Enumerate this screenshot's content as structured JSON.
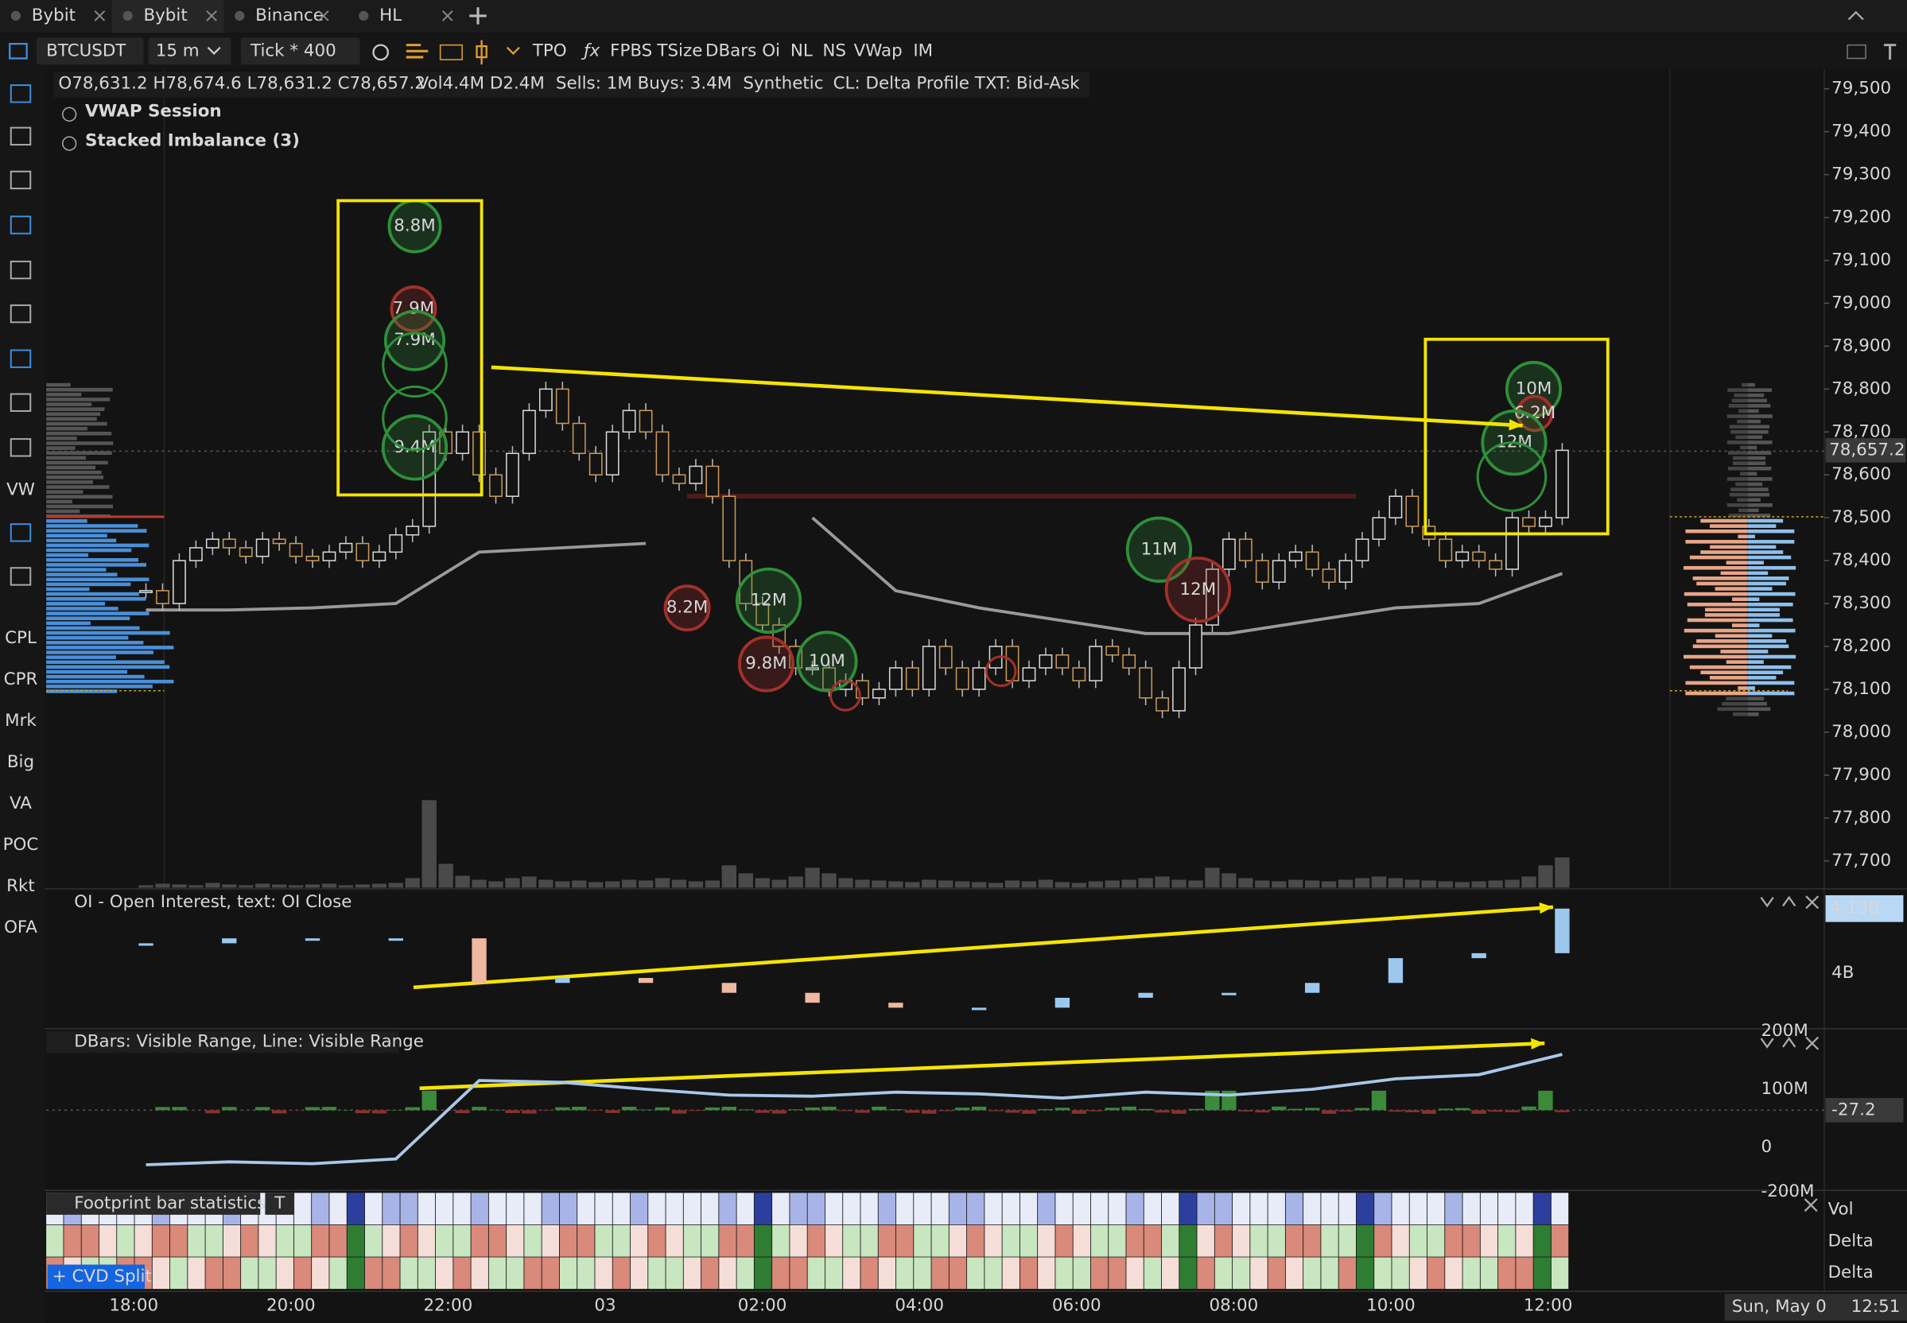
{
  "tabs": [
    "Bybit",
    "Bybit",
    "Binance",
    "HL"
  ],
  "toolbar": {
    "symbol": "BTCUSDT",
    "interval": "15 m",
    "aggregation": "Tick * 400",
    "buttons": [
      "TPO",
      "FPBS",
      "TSize",
      "DBars",
      "Oi",
      "NL",
      "NS",
      "VWap",
      "IM"
    ]
  },
  "left_tools": [
    "VW",
    "CPL",
    "CPR",
    "Mrk",
    "Big",
    "VA",
    "POC",
    "Rkt",
    "OFA"
  ],
  "legend": {
    "ohlc": "O78,631.2 H78,674.6 L78,631.2 C78,657.2",
    "vol": "Vol4.4M D2.4M",
    "flow": "Sells: 1M Buys: 3.4M",
    "mode": "Synthetic",
    "settings": "CL: Delta Profile TXT: Bid-Ask",
    "indicators": [
      "VWAP Session",
      "Stacked Imbalance (3)"
    ]
  },
  "price_chart": {
    "type": "candlestick",
    "ylim": [
      77650,
      79550
    ],
    "yticks": [
      {
        "value": 79500,
        "label": "79,500"
      },
      {
        "value": 79400,
        "label": "79,400"
      },
      {
        "value": 79300,
        "label": "79,300"
      },
      {
        "value": 79200,
        "label": "79,200"
      },
      {
        "value": 79100,
        "label": "79,100"
      },
      {
        "value": 79000,
        "label": "79,000"
      },
      {
        "value": 78900,
        "label": "78,900"
      },
      {
        "value": 78800,
        "label": "78,800"
      },
      {
        "value": 78700,
        "label": "78,700"
      },
      {
        "value": 78600,
        "label": "78,600"
      },
      {
        "value": 78500,
        "label": "78,500"
      },
      {
        "value": 78400,
        "label": "78,400"
      },
      {
        "value": 78300,
        "label": "78,300"
      },
      {
        "value": 78200,
        "label": "78,200"
      },
      {
        "value": 78100,
        "label": "78,100"
      },
      {
        "value": 78000,
        "label": "78,000"
      },
      {
        "value": 77900,
        "label": "77,900"
      },
      {
        "value": 77800,
        "label": "77,800"
      },
      {
        "value": 77700,
        "label": "77,700"
      }
    ],
    "last_price": {
      "value": 78657.2,
      "label": "78,657.2"
    },
    "closes": [
      78330,
      78300,
      78400,
      78430,
      78450,
      78430,
      78410,
      78450,
      78440,
      78410,
      78400,
      78420,
      78440,
      78400,
      78420,
      78460,
      78480,
      78700,
      78650,
      78700,
      78600,
      78550,
      78650,
      78750,
      78800,
      78720,
      78650,
      78600,
      78700,
      78750,
      78700,
      78600,
      78580,
      78620,
      78550,
      78400,
      78300,
      78250,
      78200,
      78150,
      78150,
      78100,
      78120,
      78080,
      78100,
      78150,
      78100,
      78200,
      78150,
      78100,
      78150,
      78200,
      78120,
      78150,
      78180,
      78150,
      78120,
      78200,
      78180,
      78150,
      78080,
      78050,
      78150,
      78250,
      78380,
      78450,
      78400,
      78350,
      78400,
      78420,
      78380,
      78350,
      78400,
      78450,
      78500,
      78550,
      78480,
      78450,
      78400,
      78420,
      78400,
      78380,
      78500,
      78480,
      78500,
      78657.2
    ],
    "volume": [
      3,
      5,
      4,
      3,
      6,
      4,
      3,
      5,
      4,
      3,
      4,
      5,
      3,
      4,
      5,
      6,
      12,
      110,
      30,
      15,
      10,
      8,
      12,
      14,
      10,
      8,
      9,
      7,
      8,
      10,
      9,
      12,
      10,
      8,
      9,
      28,
      18,
      12,
      10,
      14,
      25,
      18,
      12,
      10,
      9,
      8,
      7,
      10,
      9,
      8,
      7,
      6,
      9,
      8,
      10,
      7,
      6,
      8,
      9,
      10,
      12,
      14,
      10,
      9,
      25,
      18,
      12,
      9,
      8,
      10,
      9,
      8,
      10,
      12,
      14,
      12,
      10,
      9,
      8,
      7,
      8,
      9,
      10,
      14,
      28,
      38
    ],
    "vwap": [
      78285,
      78285,
      78290,
      78300,
      78420,
      78430,
      78440,
      null,
      78500,
      78330,
      78290,
      78260,
      78230,
      78230,
      78260,
      78290,
      78300,
      78370
    ],
    "colors": {
      "up": "#d8d8d8",
      "down": "#c8995a",
      "vwap": "#9a9a9a",
      "buy": "#2f8f3a",
      "sell": "#a3302a"
    },
    "imbalances": [
      {
        "label": "8.8M",
        "side": "buy"
      },
      {
        "label": "7.9M",
        "side": "sell"
      },
      {
        "label": "7.9M",
        "side": "buy"
      },
      {
        "label": "9.4M",
        "side": "buy"
      },
      {
        "label": "8.2M",
        "side": "sell"
      },
      {
        "label": "12M",
        "side": "buy"
      },
      {
        "label": "9.8M",
        "side": "sell"
      },
      {
        "label": "10M",
        "side": "buy"
      },
      {
        "label": "11M",
        "side": "buy"
      },
      {
        "label": "12M",
        "side": "sell"
      },
      {
        "label": "10M",
        "side": "buy"
      },
      {
        "label": "6.2M",
        "side": "sell"
      },
      {
        "label": "12M",
        "side": "buy"
      }
    ]
  },
  "oi_panel": {
    "title": "OI - Open Interest, text: OI Close",
    "ylim": [
      3.89,
      4.16
    ],
    "yticks": [
      {
        "value": 4,
        "label": "4B"
      }
    ],
    "last": {
      "value": 4.13,
      "label": "4.13B"
    },
    "values": [
      4.06,
      4.07,
      4.07,
      4.07,
      3.98,
      3.99,
      3.98,
      3.96,
      3.94,
      3.93,
      3.93,
      3.95,
      3.96,
      3.96,
      3.98,
      4.03,
      4.04,
      4.13
    ]
  },
  "dbars_panel": {
    "title": "DBars: Visible Range, Line: Visible Range",
    "ylim": [
      -72,
      200
    ],
    "yticks": [
      {
        "value": 200,
        "label": "200M"
      },
      {
        "value": 100,
        "label": "100M"
      },
      0,
      {
        "value": -200,
        "label": "-200M"
      }
    ],
    "current_label": "-27.2",
    "values": [
      -30,
      -25,
      -28,
      -20,
      115,
      112,
      100,
      90,
      88,
      95,
      92,
      85,
      95,
      90,
      100,
      118,
      125,
      160
    ]
  },
  "footprint": {
    "title": "Footprint bar statistics",
    "button": "T",
    "cvd": "+ CVD Split",
    "rows": [
      "Vol",
      "Delta",
      "Delta"
    ]
  },
  "time_axis": {
    "labels": [
      "18:00",
      "20:00",
      "22:00",
      "03",
      "02:00",
      "04:00",
      "06:00",
      "08:00",
      "10:00",
      "12:00"
    ],
    "date": "Sun, May 0",
    "clock": "12:51"
  }
}
